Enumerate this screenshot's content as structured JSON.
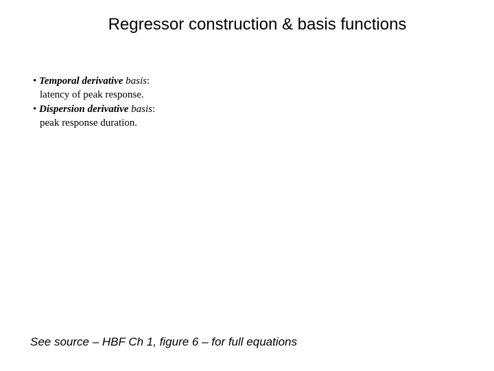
{
  "title": "Regressor construction & basis functions",
  "bullets": {
    "item1": {
      "label_bold": "Temporal derivative",
      "label_rest": " basis",
      "colon": ":",
      "desc": "latency of peak response."
    },
    "item2": {
      "label_bold": "Dispersion derivative",
      "label_rest": " basis",
      "colon": ":",
      "desc": "peak response duration."
    }
  },
  "footer": "See source – HBF Ch 1, figure 6 – for full equations",
  "colors": {
    "background": "#ffffff",
    "text": "#000000"
  },
  "typography": {
    "title_fontsize": 24,
    "bullet_fontsize": 15,
    "footer_fontsize": 17,
    "title_font": "Arial",
    "bullet_font": "Times New Roman",
    "footer_font": "Arial"
  }
}
